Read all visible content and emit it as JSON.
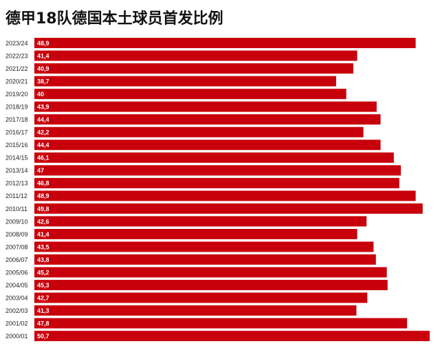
{
  "chart_data": {
    "type": "bar",
    "orientation": "horizontal",
    "title": "德甲18队德国本土球员首发比例",
    "categories": [
      "2023/24",
      "2022/23",
      "2021/22",
      "2020/21",
      "2019/20",
      "2018/19",
      "2017/18",
      "2016/17",
      "2015/16",
      "2014/15",
      "2013/14",
      "2012/13",
      "2011/12",
      "2010/11",
      "2009/10",
      "2008/09",
      "2007/08",
      "2006/07",
      "2005/06",
      "2004/05",
      "2003/04",
      "2002/03",
      "2001/02",
      "2000/01"
    ],
    "values": [
      48.9,
      41.4,
      40.9,
      38.7,
      40,
      43.9,
      44.4,
      42.2,
      44.4,
      46.1,
      47,
      46.8,
      48.9,
      49.8,
      42.6,
      41.4,
      43.5,
      43.8,
      45.2,
      45.3,
      42.7,
      41.3,
      47.8,
      50.7
    ],
    "value_labels": [
      "48,9",
      "41,4",
      "40,9",
      "38,7",
      "40",
      "43,9",
      "44,4",
      "42,2",
      "44,4",
      "46,1",
      "47",
      "46,8",
      "48,9",
      "49,8",
      "42,6",
      "41,4",
      "43,5",
      "43,8",
      "45,2",
      "45,3",
      "42,7",
      "41,3",
      "47,8",
      "50,7"
    ],
    "color": "#c8000b"
  }
}
